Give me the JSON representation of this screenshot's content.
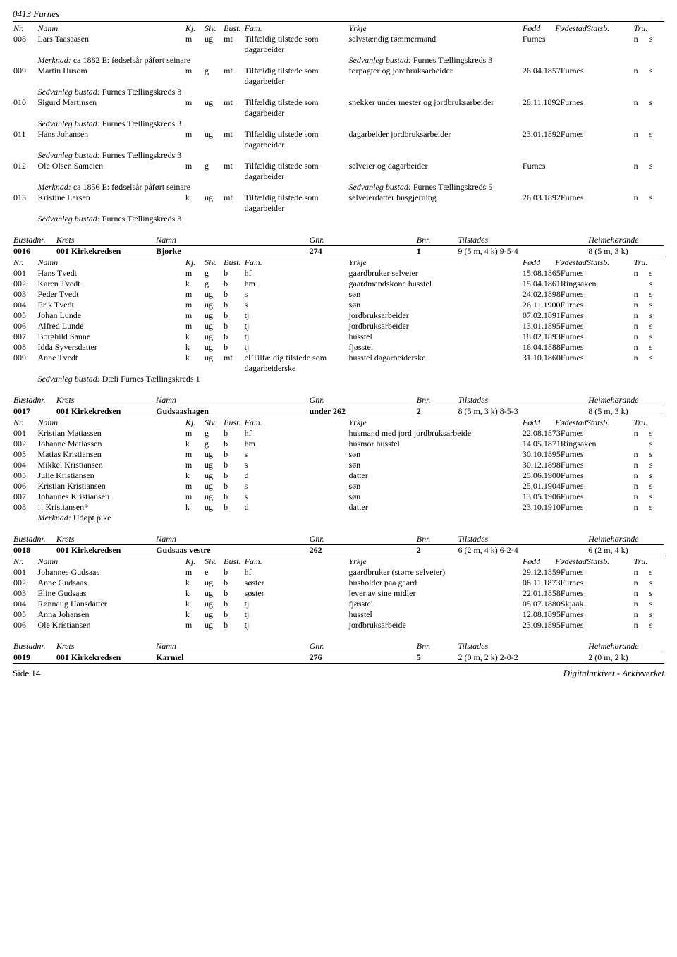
{
  "page_header": "0413 Furnes",
  "colhead": {
    "nr": "Nr.",
    "namn": "Namn",
    "kj": "Kj.",
    "siv": "Siv.",
    "bust": "Bust.",
    "fam": "Fam.",
    "yrkje": "Yrkje",
    "fodd": "Fødd",
    "fodestad": "Fødestad",
    "statsb": "Statsb.",
    "tru": "Tru."
  },
  "bhead": {
    "bustadnr": "Bustadnr.",
    "krets": "Krets",
    "namn": "Namn",
    "gnr": "Gnr.",
    "bnr": "Bnr.",
    "tilstades": "Tilstades",
    "heime": "Heimehørande"
  },
  "top_rows": [
    {
      "nr": "008",
      "name": "Lars Taasaasen",
      "kj": "m",
      "siv": "ug",
      "bust": "mt",
      "fam": "Tilfældig tilstede som dagarbeider",
      "yr": "selvstændig tømmermand",
      "fodd": "",
      "fsted": "Furnes",
      "stat": "n",
      "tru": "s"
    },
    {
      "merknad": "Merknad: ",
      "merknad2": "ca 1882 E: fødselsår påført seinare",
      "sedv": "Sedvanleg bustad: ",
      "sedv2": "Furnes Tællingskreds 3"
    },
    {
      "nr": "009",
      "name": "Martin Husom",
      "kj": "m",
      "siv": "g",
      "bust": "mt",
      "fam": "Tilfældig tilstede som dagarbeider",
      "yr": "forpagter og jordbruksarbeider",
      "fodd": "26.04.1857",
      "fsted": "Furnes",
      "stat": "n",
      "tru": "s"
    },
    {
      "sedv": "Sedvanleg bustad: ",
      "sedv2": "Furnes Tællingskreds 3"
    },
    {
      "nr": "010",
      "name": "Sigurd Martinsen",
      "kj": "m",
      "siv": "ug",
      "bust": "mt",
      "fam": "Tilfældig tilstede som dagarbeider",
      "yr": "snekker under mester og jordbruksarbeider",
      "fodd": "28.11.1892",
      "fsted": "Furnes",
      "stat": "n",
      "tru": "s"
    },
    {
      "sedv": "Sedvanleg bustad: ",
      "sedv2": "Furnes Tællingskreds 3"
    },
    {
      "nr": "011",
      "name": "Hans Johansen",
      "kj": "m",
      "siv": "ug",
      "bust": "mt",
      "fam": "Tilfældig tilstede som dagarbeider",
      "yr": "dagarbeider jordbruksarbeider",
      "fodd": "23.01.1892",
      "fsted": "Furnes",
      "stat": "n",
      "tru": "s"
    },
    {
      "sedv": "Sedvanleg bustad: ",
      "sedv2": "Furnes Tællingskreds 3"
    },
    {
      "nr": "012",
      "name": "Ole Olsen Sameien",
      "kj": "m",
      "siv": "g",
      "bust": "mt",
      "fam": "Tilfældig tilstede som dagarbeider",
      "yr": "selveier og dagarbeider",
      "fodd": "",
      "fsted": "Furnes",
      "stat": "n",
      "tru": "s"
    },
    {
      "merknad": "Merknad: ",
      "merknad2": "ca 1856 E: fødselsår påført seinare",
      "sedv": "Sedvanleg bustad: ",
      "sedv2": "Furnes Tællingskreds 5"
    },
    {
      "nr": "013",
      "name": "Kristine Larsen",
      "kj": "k",
      "siv": "ug",
      "bust": "mt",
      "fam": "Tilfældig tilstede som dagarbeider",
      "yr": "selveierdatter husgjerning",
      "fodd": "26.03.1892",
      "fsted": "Furnes",
      "stat": "n",
      "tru": "s"
    },
    {
      "sedv": "Sedvanleg bustad: ",
      "sedv2": "Furnes Tællingskreds 3"
    }
  ],
  "bustad16": {
    "nr": "0016",
    "krets": "001 Kirkekredsen",
    "namn": "Bjørke",
    "gnr": "274",
    "bnr": "1",
    "til": "9 (5 m, 4 k) 9-5-4",
    "heim": "8 (5 m, 3 k)"
  },
  "rows16": [
    {
      "nr": "001",
      "name": "Hans Tvedt",
      "kj": "m",
      "siv": "g",
      "bust": "b",
      "fam": "hf",
      "yr": "gaardbruker selveier",
      "fodd": "15.08.1865",
      "fsted": "Furnes",
      "stat": "n",
      "tru": "s"
    },
    {
      "nr": "002",
      "name": "Karen Tvedt",
      "kj": "k",
      "siv": "g",
      "bust": "b",
      "fam": "hm",
      "yr": "gaardmandskone husstel",
      "fodd": "15.04.1861",
      "fsted": "Ringsaken",
      "stat": "",
      "tru": "s"
    },
    {
      "nr": "003",
      "name": "Peder Tvedt",
      "kj": "m",
      "siv": "ug",
      "bust": "b",
      "fam": "s",
      "yr": "søn",
      "fodd": "24.02.1898",
      "fsted": "Furnes",
      "stat": "n",
      "tru": "s"
    },
    {
      "nr": "004",
      "name": "Erik Tvedt",
      "kj": "m",
      "siv": "ug",
      "bust": "b",
      "fam": "s",
      "yr": "søn",
      "fodd": "26.11.1900",
      "fsted": "Furnes",
      "stat": "n",
      "tru": "s"
    },
    {
      "nr": "005",
      "name": "Johan Lunde",
      "kj": "m",
      "siv": "ug",
      "bust": "b",
      "fam": "tj",
      "yr": "jordbruksarbeider",
      "fodd": "07.02.1891",
      "fsted": "Furnes",
      "stat": "n",
      "tru": "s"
    },
    {
      "nr": "006",
      "name": "Alfred Lunde",
      "kj": "m",
      "siv": "ug",
      "bust": "b",
      "fam": "tj",
      "yr": "jordbruksarbeider",
      "fodd": "13.01.1895",
      "fsted": "Furnes",
      "stat": "n",
      "tru": "s"
    },
    {
      "nr": "007",
      "name": "Borghild Sanne",
      "kj": "k",
      "siv": "ug",
      "bust": "b",
      "fam": "tj",
      "yr": "husstel",
      "fodd": "18.02.1893",
      "fsted": "Furnes",
      "stat": "n",
      "tru": "s"
    },
    {
      "nr": "008",
      "name": "Idda Syversdatter",
      "kj": "k",
      "siv": "ug",
      "bust": "b",
      "fam": "tj",
      "yr": "fjøsstel",
      "fodd": "16.04.1888",
      "fsted": "Furnes",
      "stat": "n",
      "tru": "s"
    },
    {
      "nr": "009",
      "name": "Anne Tvedt",
      "kj": "k",
      "siv": "ug",
      "bust": "mt",
      "fam": "el Tilfældig tilstede som dagarbeiderske",
      "yr": "husstel dagarbeiderske",
      "fodd": "31.10.1860",
      "fsted": "Furnes",
      "stat": "n",
      "tru": "s"
    }
  ],
  "sedv16": {
    "label": "Sedvanleg bustad: ",
    "val": "Dæli Furnes Tællingskreds 1"
  },
  "bustad17": {
    "nr": "0017",
    "krets": "001 Kirkekredsen",
    "namn": "Gudsaashagen",
    "gnr": "under 262",
    "bnr": "2",
    "til": "8 (5 m, 3 k) 8-5-3",
    "heim": "8 (5 m, 3 k)"
  },
  "rows17": [
    {
      "nr": "001",
      "name": "Kristian Matiassen",
      "kj": "m",
      "siv": "g",
      "bust": "b",
      "fam": "hf",
      "yr": "husmand med jord jordbruksarbeide",
      "fodd": "22.08.1873",
      "fsted": "Furnes",
      "stat": "n",
      "tru": "s"
    },
    {
      "nr": "002",
      "name": "Johanne Matiassen",
      "kj": "k",
      "siv": "g",
      "bust": "b",
      "fam": "hm",
      "yr": "husmor husstel",
      "fodd": "14.05.1871",
      "fsted": "Ringsaken",
      "stat": "",
      "tru": "s"
    },
    {
      "nr": "003",
      "name": "Matias Kristiansen",
      "kj": "m",
      "siv": "ug",
      "bust": "b",
      "fam": "s",
      "yr": "søn",
      "fodd": "30.10.1895",
      "fsted": "Furnes",
      "stat": "n",
      "tru": "s"
    },
    {
      "nr": "004",
      "name": "Mikkel Kristiansen",
      "kj": "m",
      "siv": "ug",
      "bust": "b",
      "fam": "s",
      "yr": "søn",
      "fodd": "30.12.1898",
      "fsted": "Furnes",
      "stat": "n",
      "tru": "s"
    },
    {
      "nr": "005",
      "name": "Julie Kristiansen",
      "kj": "k",
      "siv": "ug",
      "bust": "b",
      "fam": "d",
      "yr": "datter",
      "fodd": "25.06.1900",
      "fsted": "Furnes",
      "stat": "n",
      "tru": "s"
    },
    {
      "nr": "006",
      "name": "Kristian Kristiansen",
      "kj": "m",
      "siv": "ug",
      "bust": "b",
      "fam": "s",
      "yr": "søn",
      "fodd": "25.01.1904",
      "fsted": "Furnes",
      "stat": "n",
      "tru": "s"
    },
    {
      "nr": "007",
      "name": "Johannes Kristiansen",
      "kj": "m",
      "siv": "ug",
      "bust": "b",
      "fam": "s",
      "yr": "søn",
      "fodd": "13.05.1906",
      "fsted": "Furnes",
      "stat": "n",
      "tru": "s"
    },
    {
      "nr": "008",
      "name": "!! Kristiansen*",
      "kj": "k",
      "siv": "ug",
      "bust": "b",
      "fam": "d",
      "yr": "datter",
      "fodd": "23.10.1910",
      "fsted": "Furnes",
      "stat": "n",
      "tru": "s"
    }
  ],
  "merk17": {
    "label": "Merknad: ",
    "val": "Udøpt pike"
  },
  "bustad18": {
    "nr": "0018",
    "krets": "001 Kirkekredsen",
    "namn": "Gudsaas vestre",
    "gnr": "262",
    "bnr": "2",
    "til": "6 (2 m, 4 k) 6-2-4",
    "heim": "6 (2 m, 4 k)"
  },
  "rows18": [
    {
      "nr": "001",
      "name": "Johannes Gudsaas",
      "kj": "m",
      "siv": "e",
      "bust": "b",
      "fam": "hf",
      "yr": "gaardbruker (større selveier)",
      "fodd": "29.12.1859",
      "fsted": "Furnes",
      "stat": "n",
      "tru": "s"
    },
    {
      "nr": "002",
      "name": "Anne Gudsaas",
      "kj": "k",
      "siv": "ug",
      "bust": "b",
      "fam": "søster",
      "yr": "husholder paa gaard",
      "fodd": "08.11.1873",
      "fsted": "Furnes",
      "stat": "n",
      "tru": "s"
    },
    {
      "nr": "003",
      "name": "Eline Gudsaas",
      "kj": "k",
      "siv": "ug",
      "bust": "b",
      "fam": "søster",
      "yr": "lever av sine midler",
      "fodd": "22.01.1858",
      "fsted": "Furnes",
      "stat": "n",
      "tru": "s"
    },
    {
      "nr": "004",
      "name": "Rønnaug Hansdatter",
      "kj": "k",
      "siv": "ug",
      "bust": "b",
      "fam": "tj",
      "yr": "fjøsstel",
      "fodd": "05.07.1880",
      "fsted": "Skjaak",
      "stat": "n",
      "tru": "s"
    },
    {
      "nr": "005",
      "name": "Anna Johansen",
      "kj": "k",
      "siv": "ug",
      "bust": "b",
      "fam": "tj",
      "yr": "husstel",
      "fodd": "12.08.1895",
      "fsted": "Furnes",
      "stat": "n",
      "tru": "s"
    },
    {
      "nr": "006",
      "name": "Ole Kristiansen",
      "kj": "m",
      "siv": "ug",
      "bust": "b",
      "fam": "tj",
      "yr": "jordbruksarbeide",
      "fodd": "23.09.1895",
      "fsted": "Furnes",
      "stat": "n",
      "tru": "s"
    }
  ],
  "bustad19": {
    "nr": "0019",
    "krets": "001 Kirkekredsen",
    "namn": "Karmel",
    "gnr": "276",
    "bnr": "5",
    "til": "2 (0 m, 2 k) 2-0-2",
    "heim": "2 (0 m, 2 k)"
  },
  "footer": {
    "left": "Side 14",
    "right": "Digitalarkivet - Arkivverket"
  }
}
